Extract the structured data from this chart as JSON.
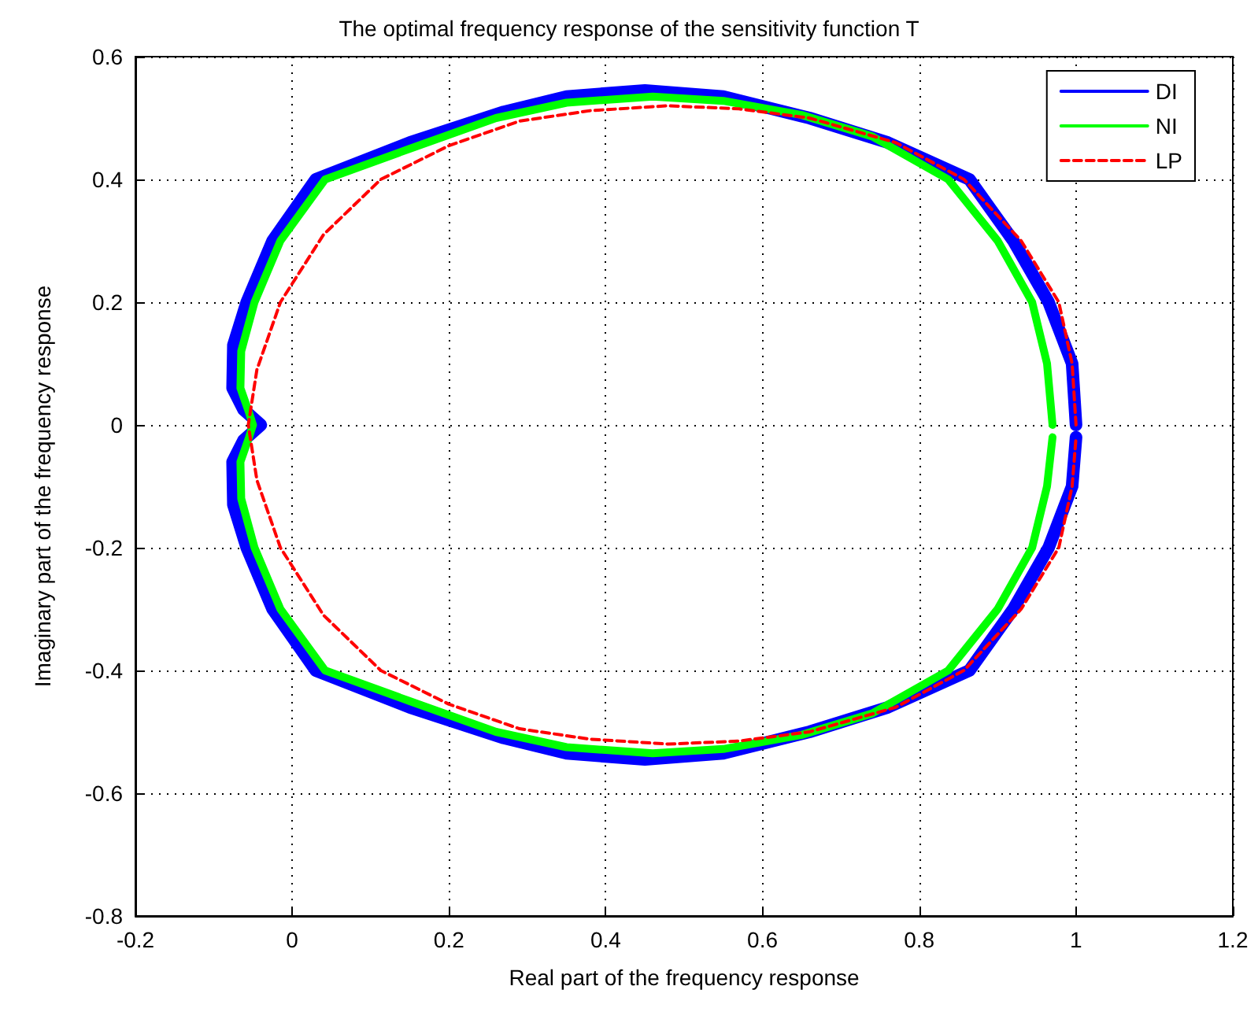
{
  "chart_data": {
    "type": "line",
    "title": "The optimal frequency response of the sensitivity function T",
    "xlabel": "Real part of the frequency response",
    "ylabel": "Imaginary part of the frequency response",
    "xlim": [
      -0.2,
      1.2
    ],
    "xticks": [
      -0.2,
      0,
      0.2,
      0.4,
      0.6,
      0.8,
      1,
      1.2
    ],
    "ylim": [
      -0.8,
      0.6
    ],
    "yticks": [
      -0.8,
      -0.6,
      -0.4,
      -0.2,
      0,
      0.2,
      0.4,
      0.6
    ],
    "grid": true,
    "legend": "top right",
    "marker": "none",
    "series": [
      {
        "name": "DI",
        "color": "#0000ff",
        "line_style": "solid",
        "x": [
          1.0,
          0.995,
          0.965,
          0.92,
          0.864,
          0.76,
          0.66,
          0.55,
          0.45,
          0.35,
          0.27,
          0.15,
          0.03,
          -0.025,
          -0.058,
          -0.075,
          -0.076,
          -0.062,
          -0.04,
          -0.062,
          -0.076,
          -0.075,
          -0.058,
          -0.025,
          0.03,
          0.15,
          0.27,
          0.35,
          0.45,
          0.55,
          0.66,
          0.76,
          0.864,
          0.92,
          0.965,
          0.995,
          1.0
        ],
        "values": [
          0,
          0.1,
          0.2,
          0.3,
          0.4,
          0.46,
          0.5,
          0.535,
          0.545,
          0.535,
          0.51,
          0.46,
          0.4,
          0.3,
          0.2,
          0.13,
          0.06,
          0.025,
          0,
          -0.025,
          -0.06,
          -0.13,
          -0.2,
          -0.3,
          -0.4,
          -0.46,
          -0.51,
          -0.535,
          -0.545,
          -0.535,
          -0.5,
          -0.46,
          -0.4,
          -0.3,
          -0.2,
          -0.1,
          -0.02
        ]
      },
      {
        "name": "NI",
        "color": "#00ff00",
        "line_style": "solid",
        "x": [
          0.97,
          0.963,
          0.944,
          0.9,
          0.837,
          0.74,
          0.65,
          0.55,
          0.46,
          0.35,
          0.26,
          0.15,
          0.042,
          -0.015,
          -0.048,
          -0.065,
          -0.066,
          -0.055,
          -0.05,
          -0.055,
          -0.066,
          -0.065,
          -0.048,
          -0.015,
          0.042,
          0.15,
          0.26,
          0.35,
          0.46,
          0.55,
          0.65,
          0.74,
          0.837,
          0.9,
          0.944,
          0.963,
          0.97
        ],
        "values": [
          0,
          0.1,
          0.2,
          0.3,
          0.4,
          0.47,
          0.505,
          0.528,
          0.535,
          0.525,
          0.5,
          0.45,
          0.4,
          0.3,
          0.2,
          0.12,
          0.06,
          0.02,
          0,
          -0.02,
          -0.06,
          -0.12,
          -0.2,
          -0.3,
          -0.4,
          -0.45,
          -0.5,
          -0.525,
          -0.535,
          -0.528,
          -0.505,
          -0.47,
          -0.4,
          -0.3,
          -0.2,
          -0.1,
          -0.02
        ]
      },
      {
        "name": "LP",
        "color": "#ff0000",
        "line_style": "dashed",
        "x": [
          1.0,
          0.995,
          0.978,
          0.93,
          0.857,
          0.77,
          0.66,
          0.57,
          0.48,
          0.38,
          0.29,
          0.2,
          0.113,
          0.04,
          -0.015,
          -0.045,
          -0.056,
          -0.045,
          -0.015,
          0.04,
          0.113,
          0.2,
          0.29,
          0.38,
          0.48,
          0.57,
          0.66,
          0.77,
          0.857,
          0.93,
          0.978,
          0.995,
          1.0
        ],
        "values": [
          0,
          0.1,
          0.2,
          0.3,
          0.4,
          0.46,
          0.5,
          0.515,
          0.52,
          0.512,
          0.495,
          0.455,
          0.4,
          0.31,
          0.2,
          0.09,
          0,
          -0.09,
          -0.2,
          -0.31,
          -0.4,
          -0.455,
          -0.495,
          -0.512,
          -0.52,
          -0.515,
          -0.5,
          -0.46,
          -0.4,
          -0.3,
          -0.2,
          -0.1,
          -0.02
        ]
      }
    ]
  }
}
